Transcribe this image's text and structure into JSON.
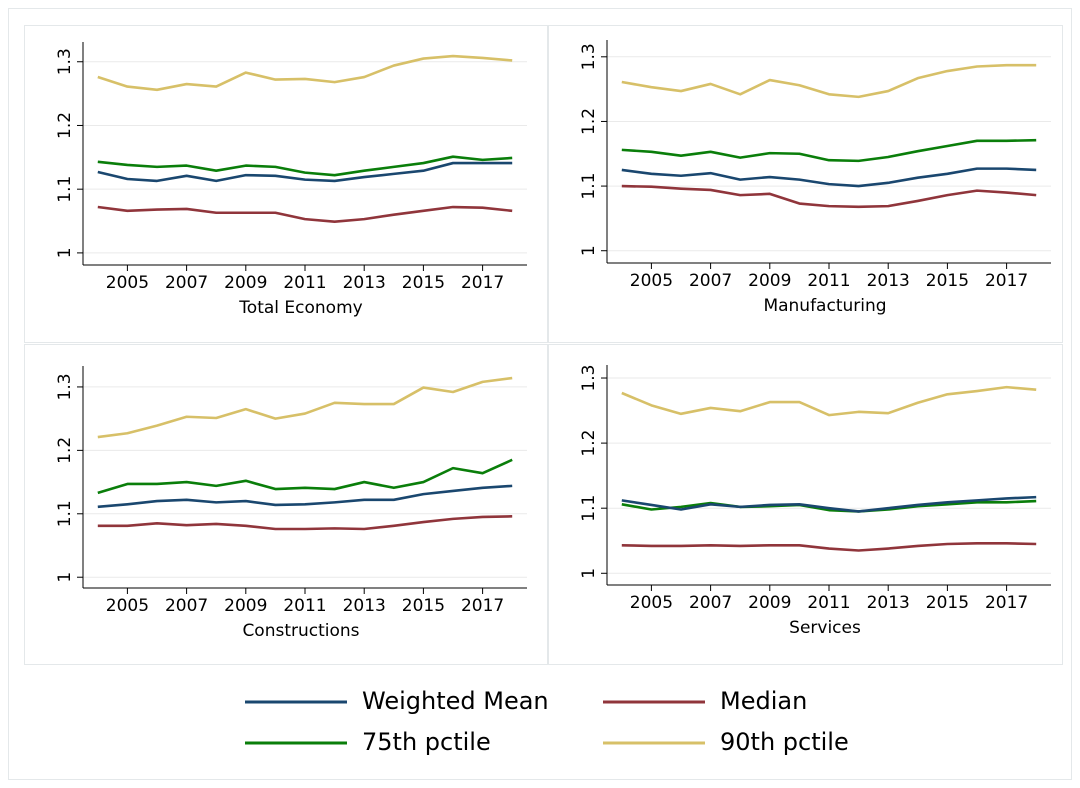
{
  "chart_data": [
    {
      "type": "line",
      "title": "Total Economy",
      "x": [
        2004,
        2005,
        2006,
        2007,
        2008,
        2009,
        2010,
        2011,
        2012,
        2013,
        2014,
        2015,
        2016,
        2017,
        2018
      ],
      "xlim": [
        2003.5,
        2018.5
      ],
      "xticks": [
        2005,
        2007,
        2009,
        2011,
        2013,
        2015,
        2017
      ],
      "ylim": [
        0.981,
        1.331
      ],
      "yticks": [
        1,
        1.1,
        1.2,
        1.3
      ],
      "grid": true,
      "series": [
        {
          "name": "Weighted Mean",
          "color": "#1a476f",
          "values": [
            1.127,
            1.116,
            1.113,
            1.121,
            1.113,
            1.122,
            1.121,
            1.115,
            1.113,
            1.119,
            1.124,
            1.129,
            1.141,
            1.141,
            1.141
          ]
        },
        {
          "name": "Median",
          "color": "#90353b",
          "values": [
            1.072,
            1.066,
            1.068,
            1.069,
            1.063,
            1.063,
            1.063,
            1.053,
            1.049,
            1.053,
            1.06,
            1.066,
            1.072,
            1.071,
            1.066
          ]
        },
        {
          "name": "75th pctile",
          "color": "#0a7e0a",
          "values": [
            1.143,
            1.138,
            1.135,
            1.137,
            1.129,
            1.137,
            1.135,
            1.126,
            1.122,
            1.129,
            1.135,
            1.141,
            1.151,
            1.146,
            1.149
          ]
        },
        {
          "name": "90th pctile",
          "color": "#d7c068",
          "values": [
            1.276,
            1.261,
            1.256,
            1.265,
            1.261,
            1.283,
            1.272,
            1.273,
            1.268,
            1.276,
            1.294,
            1.305,
            1.309,
            1.306,
            1.302
          ]
        }
      ]
    },
    {
      "type": "line",
      "title": "Manufacturing",
      "x": [
        2004,
        2005,
        2006,
        2007,
        2008,
        2009,
        2010,
        2011,
        2012,
        2013,
        2014,
        2015,
        2016,
        2017,
        2018
      ],
      "xlim": [
        2003.5,
        2018.5
      ],
      "xticks": [
        2005,
        2007,
        2009,
        2011,
        2013,
        2015,
        2017
      ],
      "ylim": [
        0.981,
        1.326
      ],
      "yticks": [
        1,
        1.1,
        1.2,
        1.3
      ],
      "grid": true,
      "series": [
        {
          "name": "Weighted Mean",
          "color": "#1a476f",
          "values": [
            1.125,
            1.119,
            1.116,
            1.12,
            1.11,
            1.114,
            1.11,
            1.103,
            1.1,
            1.105,
            1.113,
            1.119,
            1.127,
            1.127,
            1.125
          ]
        },
        {
          "name": "Median",
          "color": "#90353b",
          "values": [
            1.1,
            1.099,
            1.096,
            1.094,
            1.086,
            1.088,
            1.073,
            1.069,
            1.068,
            1.069,
            1.077,
            1.086,
            1.093,
            1.09,
            1.086
          ]
        },
        {
          "name": "75th pctile",
          "color": "#0a7e0a",
          "values": [
            1.156,
            1.153,
            1.147,
            1.153,
            1.144,
            1.151,
            1.15,
            1.14,
            1.139,
            1.145,
            1.154,
            1.162,
            1.17,
            1.17,
            1.171
          ]
        },
        {
          "name": "90th pctile",
          "color": "#d7c068",
          "values": [
            1.261,
            1.253,
            1.247,
            1.258,
            1.242,
            1.264,
            1.256,
            1.242,
            1.238,
            1.247,
            1.267,
            1.278,
            1.285,
            1.287,
            1.287
          ]
        }
      ]
    },
    {
      "type": "line",
      "title": "Constructions",
      "x": [
        2004,
        2005,
        2006,
        2007,
        2008,
        2009,
        2010,
        2011,
        2012,
        2013,
        2014,
        2015,
        2016,
        2017,
        2018
      ],
      "xlim": [
        2003.5,
        2018.5
      ],
      "xticks": [
        2005,
        2007,
        2009,
        2011,
        2013,
        2015,
        2017
      ],
      "ylim": [
        0.983,
        1.333
      ],
      "yticks": [
        1,
        1.1,
        1.2,
        1.3
      ],
      "grid": true,
      "series": [
        {
          "name": "Weighted Mean",
          "color": "#1a476f",
          "values": [
            1.111,
            1.115,
            1.12,
            1.122,
            1.118,
            1.12,
            1.114,
            1.115,
            1.118,
            1.122,
            1.122,
            1.131,
            1.136,
            1.141,
            1.144
          ]
        },
        {
          "name": "Median",
          "color": "#90353b",
          "values": [
            1.081,
            1.081,
            1.085,
            1.082,
            1.084,
            1.081,
            1.076,
            1.076,
            1.077,
            1.076,
            1.081,
            1.087,
            1.092,
            1.095,
            1.096
          ]
        },
        {
          "name": "75th pctile",
          "color": "#0a7e0a",
          "values": [
            1.133,
            1.147,
            1.147,
            1.15,
            1.144,
            1.152,
            1.139,
            1.141,
            1.139,
            1.15,
            1.141,
            1.15,
            1.172,
            1.164,
            1.185
          ]
        },
        {
          "name": "90th pctile",
          "color": "#d7c068",
          "values": [
            1.221,
            1.227,
            1.239,
            1.253,
            1.251,
            1.265,
            1.25,
            1.258,
            1.275,
            1.273,
            1.273,
            1.299,
            1.292,
            1.308,
            1.314
          ]
        }
      ]
    },
    {
      "type": "line",
      "title": "Services",
      "x": [
        2004,
        2005,
        2006,
        2007,
        2008,
        2009,
        2010,
        2011,
        2012,
        2013,
        2014,
        2015,
        2016,
        2017,
        2018
      ],
      "xlim": [
        2003.5,
        2018.5
      ],
      "xticks": [
        2005,
        2007,
        2009,
        2011,
        2013,
        2015,
        2017
      ],
      "ylim": [
        0.982,
        1.32
      ],
      "yticks": [
        1,
        1.1,
        1.2,
        1.3
      ],
      "grid": true,
      "series": [
        {
          "name": "Weighted Mean",
          "color": "#1a476f",
          "values": [
            1.112,
            1.105,
            1.098,
            1.106,
            1.102,
            1.105,
            1.106,
            1.1,
            1.095,
            1.1,
            1.105,
            1.109,
            1.112,
            1.115,
            1.117
          ]
        },
        {
          "name": "Median",
          "color": "#90353b",
          "values": [
            1.043,
            1.042,
            1.042,
            1.043,
            1.042,
            1.043,
            1.043,
            1.038,
            1.035,
            1.038,
            1.042,
            1.045,
            1.046,
            1.046,
            1.045
          ]
        },
        {
          "name": "75th pctile",
          "color": "#0a7e0a",
          "values": [
            1.106,
            1.098,
            1.102,
            1.108,
            1.102,
            1.103,
            1.105,
            1.097,
            1.095,
            1.098,
            1.103,
            1.106,
            1.109,
            1.109,
            1.111
          ]
        },
        {
          "name": "90th pctile",
          "color": "#d7c068",
          "values": [
            1.277,
            1.258,
            1.245,
            1.254,
            1.249,
            1.263,
            1.263,
            1.243,
            1.248,
            1.246,
            1.262,
            1.275,
            1.28,
            1.286,
            1.282
          ]
        }
      ]
    }
  ]
}
